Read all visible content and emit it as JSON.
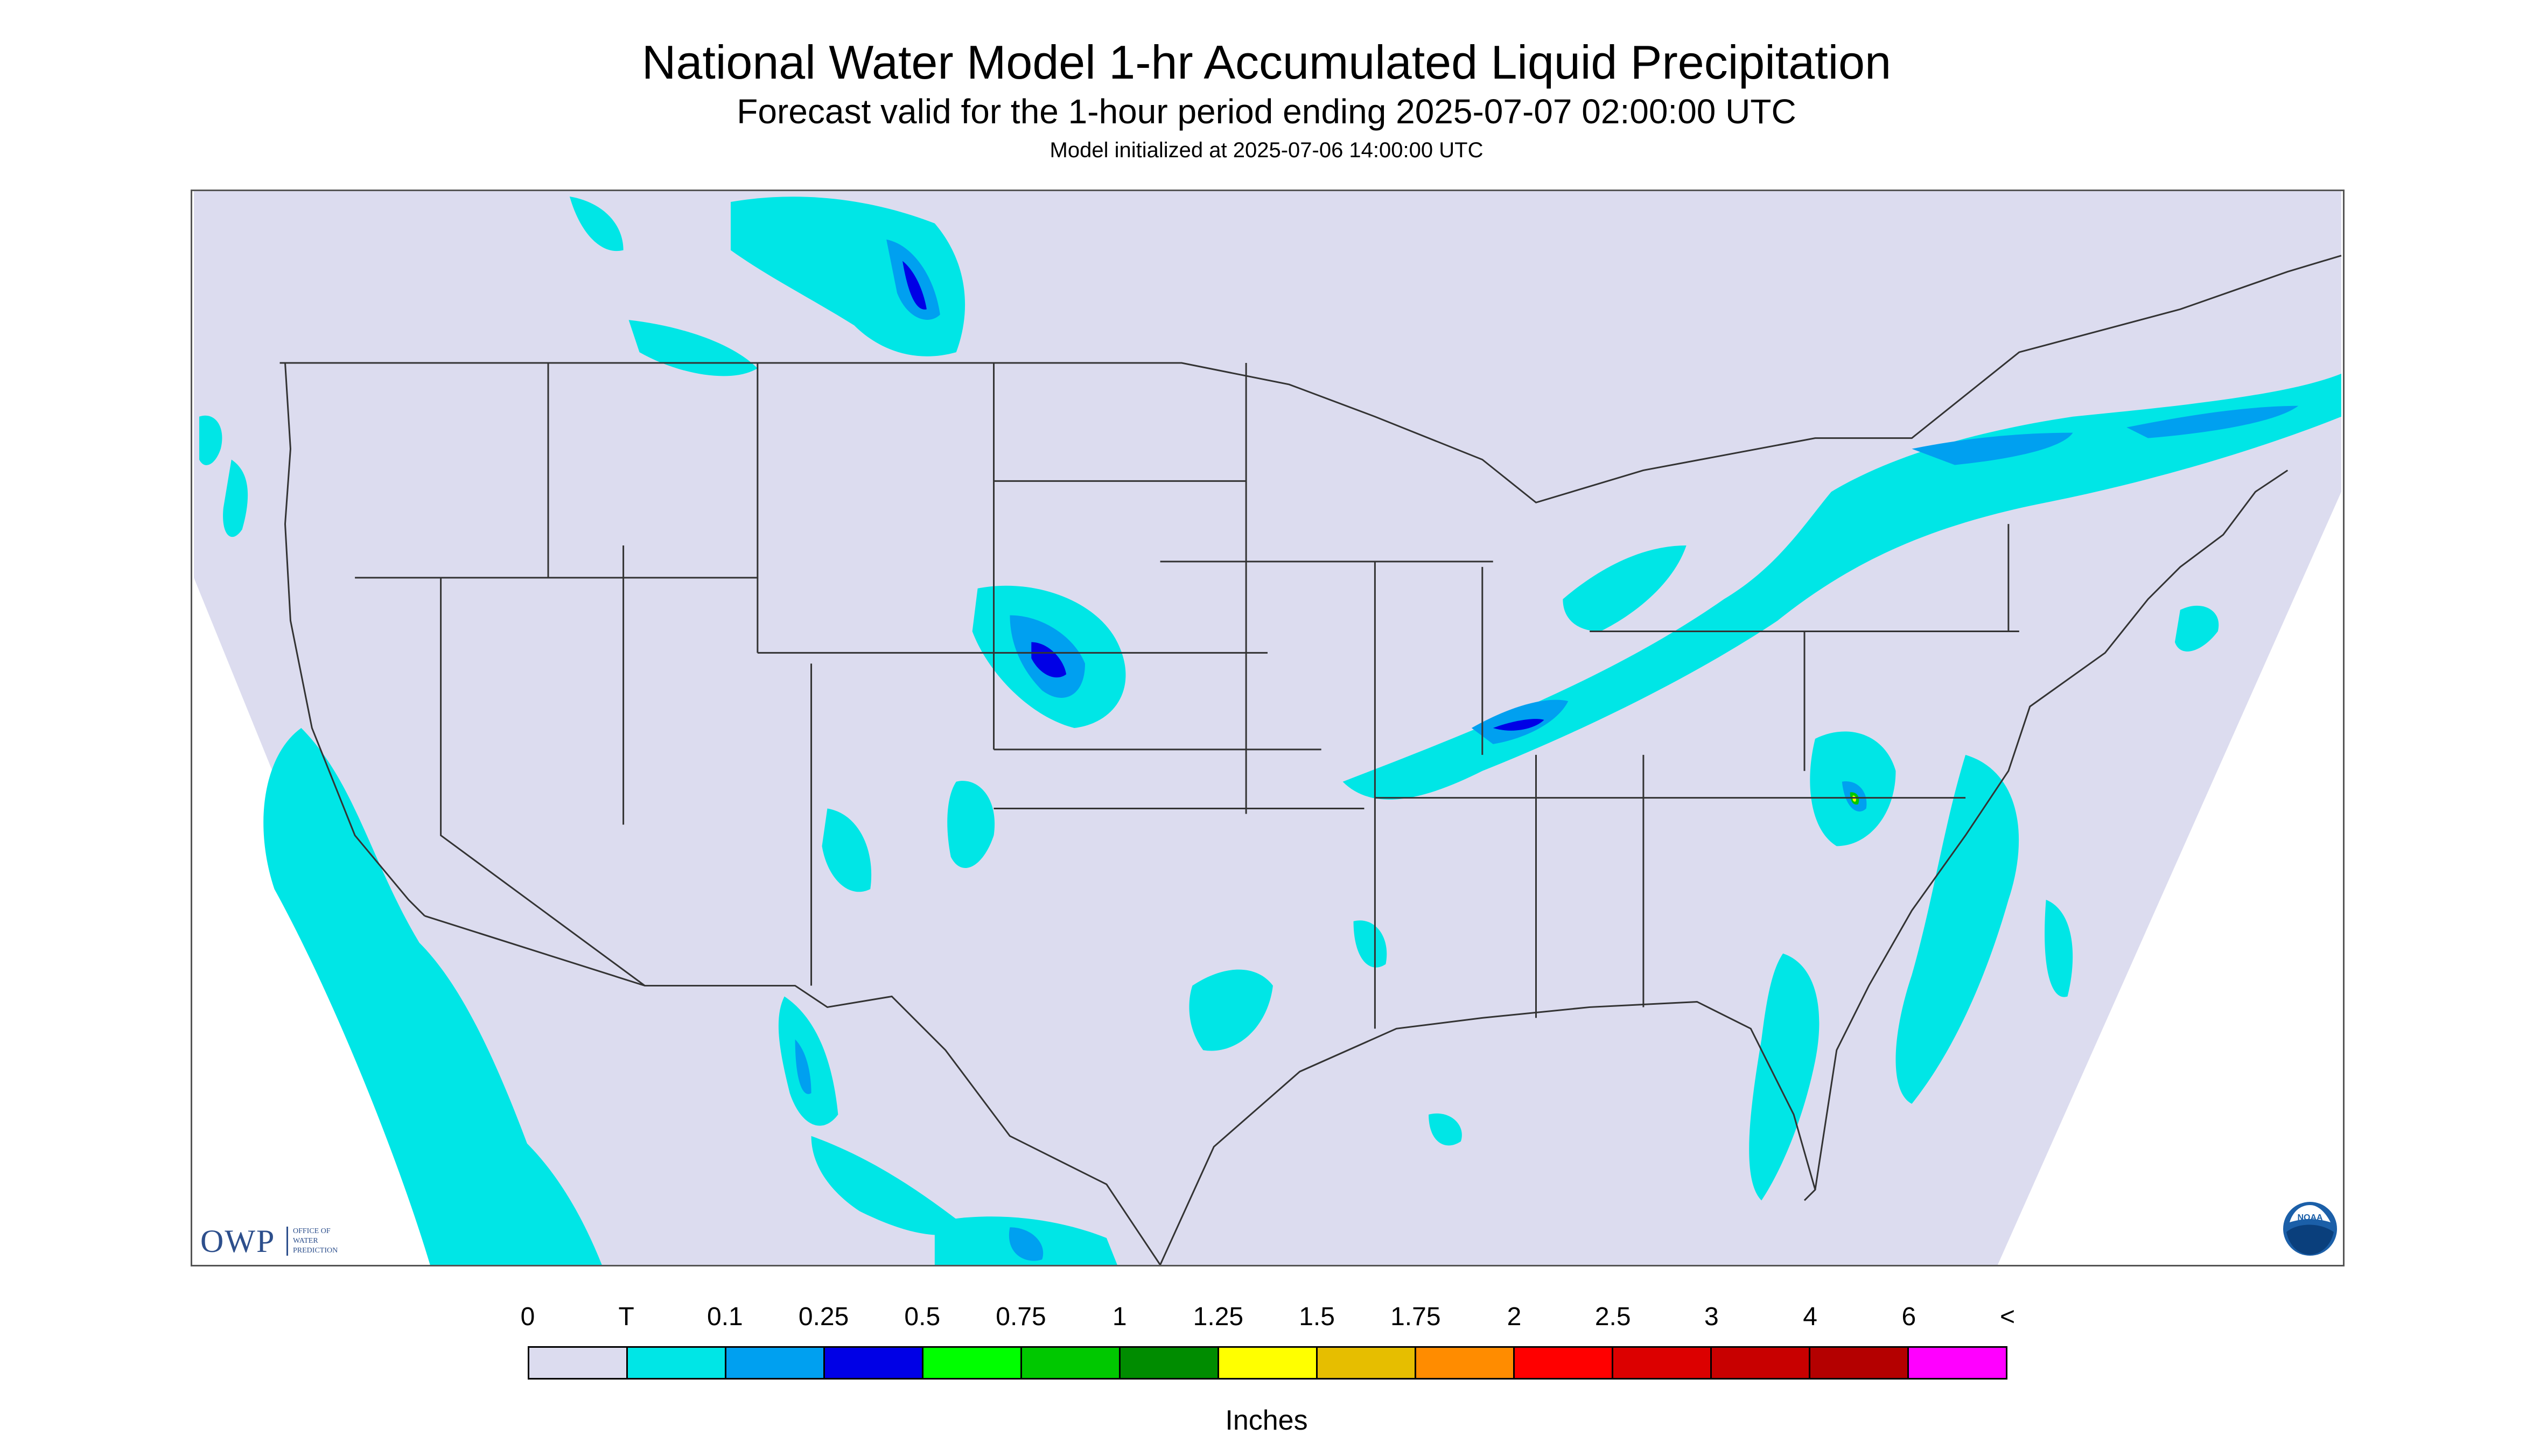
{
  "title": "National Water Model 1-hr Accumulated Liquid Precipitation",
  "subtitle": "Forecast valid for the 1-hour period ending 2025-07-07 02:00:00 UTC",
  "init": "Model initialized at 2025-07-06 14:00:00 UTC",
  "logos": {
    "owp_big": "OWP",
    "owp_small": [
      "OFFICE OF",
      "WATER",
      "PREDICTION"
    ],
    "noaa": "NOAA"
  },
  "legend": {
    "labels": [
      "0",
      "T",
      "0.1",
      "0.25",
      "0.5",
      "0.75",
      "1",
      "1.25",
      "1.5",
      "1.75",
      "2",
      "2.5",
      "3",
      "4",
      "6",
      "<"
    ],
    "colors": [
      "#dcdcef",
      "#00e6e6",
      "#00a0f0",
      "#0000e6",
      "#00ff00",
      "#00c800",
      "#008c00",
      "#ffff00",
      "#e6be00",
      "#ff8c00",
      "#ff0000",
      "#dc0000",
      "#c80000",
      "#b40000",
      "#ff00ff",
      "#9650c8"
    ],
    "units": "Inches"
  },
  "map_colors": {
    "background": "#dcdcef",
    "outside": "#ffffff",
    "border": "#333333",
    "trace": "#00e6e6",
    "light": "#00a0f0",
    "moderate": "#0000e6",
    "heavy": "#00c800",
    "peak": "#ffff00"
  }
}
